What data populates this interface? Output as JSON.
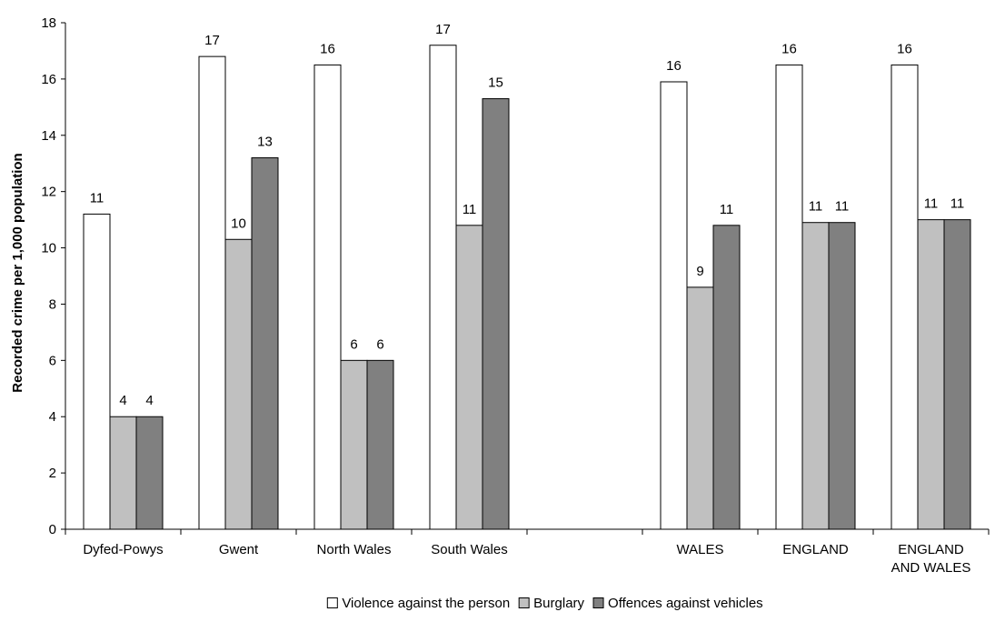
{
  "chart_data": {
    "type": "bar",
    "title": "",
    "xlabel": "",
    "ylabel": "Recorded crime per 1,000 population",
    "ylim": [
      0,
      18
    ],
    "yticks": [
      0,
      2,
      4,
      6,
      8,
      10,
      12,
      14,
      16,
      18
    ],
    "grid": false,
    "legend_position": "bottom",
    "categories": [
      [
        "Dyfed-Powys"
      ],
      [
        "Gwent"
      ],
      [
        "North Wales"
      ],
      [
        "South Wales"
      ],
      [
        ""
      ],
      [
        "WALES"
      ],
      [
        "ENGLAND"
      ],
      [
        "ENGLAND",
        "AND WALES"
      ]
    ],
    "series": [
      {
        "name": "Violence against the person",
        "color": "#ffffff",
        "values": [
          11.2,
          16.8,
          16.5,
          17.2,
          null,
          15.9,
          16.5,
          16.5
        ],
        "labels": [
          "11",
          "17",
          "16",
          "17",
          "",
          "16",
          "16",
          "16"
        ]
      },
      {
        "name": "Burglary",
        "color": "#c0c0c0",
        "values": [
          4.0,
          10.3,
          6.0,
          10.8,
          null,
          8.6,
          10.9,
          11.0
        ],
        "labels": [
          "4",
          "10",
          "6",
          "11",
          "",
          "9",
          "11",
          "11"
        ]
      },
      {
        "name": "Offences against vehicles",
        "color": "#808080",
        "values": [
          4.0,
          13.2,
          6.0,
          15.3,
          null,
          10.8,
          10.9,
          11.0
        ],
        "labels": [
          "4",
          "13",
          "6",
          "15",
          "",
          "11",
          "11",
          "11"
        ]
      }
    ]
  }
}
